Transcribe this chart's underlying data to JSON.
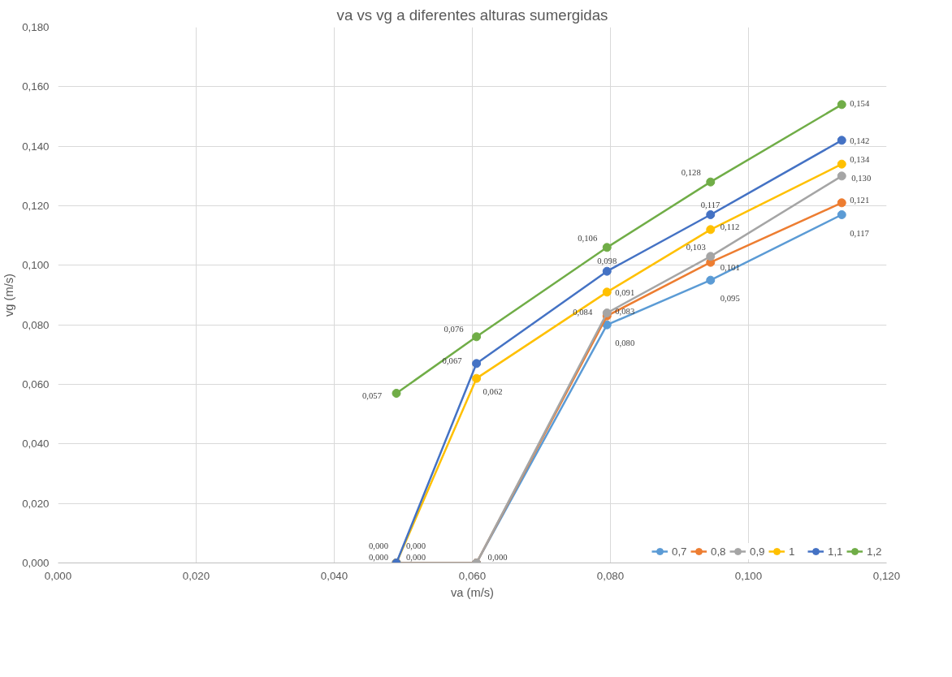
{
  "chart_data": {
    "type": "line",
    "title": "va vs vg a diferentes alturas sumergidas",
    "xlabel": "va (m/s)",
    "ylabel": "vg (m/s)",
    "x": [
      0.049,
      0.0606,
      0.0795,
      0.0945,
      0.1135
    ],
    "series": [
      {
        "name": "0,7",
        "color": "#5b9bd5",
        "values": [
          0.0,
          0.0,
          0.08,
          0.095,
          0.117
        ],
        "value_labels": [
          null,
          null,
          "0,080",
          "0,095",
          "0,117"
        ]
      },
      {
        "name": "0,8",
        "color": "#ed7d31",
        "values": [
          0.0,
          0.0,
          0.083,
          0.101,
          0.121
        ],
        "value_labels": [
          "0,000",
          null,
          "0,083",
          "0,101",
          "0,121"
        ]
      },
      {
        "name": "0,9",
        "color": "#a5a5a5",
        "values": [
          0.0,
          0.0,
          0.084,
          0.103,
          0.13
        ],
        "value_labels": [
          "0,000",
          "0,000",
          "0,084",
          "0,103",
          "0,130"
        ]
      },
      {
        "name": "1",
        "color": "#ffc000",
        "values": [
          0.0,
          0.062,
          0.091,
          0.112,
          0.134
        ],
        "value_labels": [
          "0,000",
          "0,062",
          "0,091",
          "0,112",
          "0,134"
        ]
      },
      {
        "name": "1,1",
        "color": "#4472c4",
        "values": [
          0.0,
          0.067,
          0.098,
          0.117,
          0.142
        ],
        "value_labels": [
          "0,000",
          "0,067",
          "0,098",
          "0,117",
          "0,142"
        ]
      },
      {
        "name": "1,2",
        "color": "#70ad47",
        "values": [
          0.057,
          0.076,
          0.106,
          0.128,
          0.154
        ],
        "value_labels": [
          "0,057",
          "0,076",
          "0,106",
          "0,128",
          "0,154"
        ]
      }
    ],
    "xlim": [
      0,
      0.12
    ],
    "ylim": [
      0,
      0.18
    ],
    "xticks": [
      {
        "value": 0,
        "label": "0,000"
      },
      {
        "value": 0.02,
        "label": "0,020"
      },
      {
        "value": 0.04,
        "label": "0,040"
      },
      {
        "value": 0.06,
        "label": "0,060"
      },
      {
        "value": 0.08,
        "label": "0,080"
      },
      {
        "value": 0.1,
        "label": "0,100"
      },
      {
        "value": 0.12,
        "label": "0,120"
      }
    ],
    "yticks": [
      {
        "value": 0,
        "label": "0,000"
      },
      {
        "value": 0.02,
        "label": "0,020"
      },
      {
        "value": 0.04,
        "label": "0,040"
      },
      {
        "value": 0.06,
        "label": "0,060"
      },
      {
        "value": 0.08,
        "label": "0,080"
      },
      {
        "value": 0.1,
        "label": "0,100"
      },
      {
        "value": 0.12,
        "label": "0,120"
      },
      {
        "value": 0.14,
        "label": "0,140"
      },
      {
        "value": 0.16,
        "label": "0,160"
      },
      {
        "value": 0.18,
        "label": "0,180"
      }
    ],
    "grid": true,
    "legend": "bottom right",
    "marker": "circle",
    "line_style": "solid"
  }
}
